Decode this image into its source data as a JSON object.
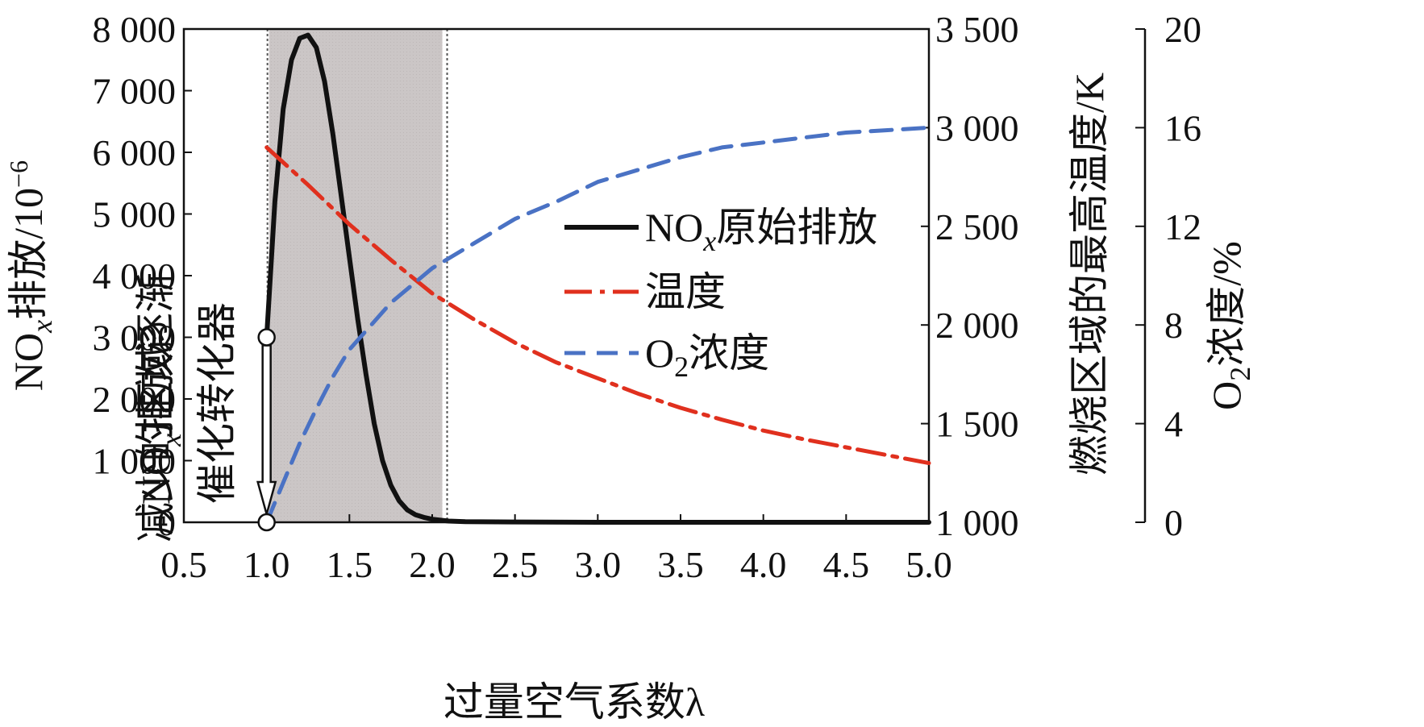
{
  "chart_data": {
    "type": "line",
    "xlabel": "过量空气系数λ",
    "x_axis": {
      "range": [
        0.5,
        5.0
      ],
      "ticks": [
        "0.5",
        "1.0",
        "1.5",
        "2.0",
        "2.5",
        "3.0",
        "3.5",
        "4.0",
        "4.5",
        "5.0"
      ]
    },
    "y_left": {
      "label_main": "NO",
      "label_sub": "x",
      "label_rest": "排放/10",
      "label_sup": "−6",
      "range": [
        0,
        8000
      ],
      "ticks": [
        "0",
        "1 000",
        "2 000",
        "3 000",
        "4 000",
        "5 000",
        "6 000",
        "7 000",
        "8 000"
      ]
    },
    "y_right1": {
      "label": "燃烧区域的最高温度/K",
      "range": [
        1000,
        3500
      ],
      "ticks": [
        "1 000",
        "1 500",
        "2 000",
        "2 500",
        "3 000",
        "3 500"
      ]
    },
    "y_right2": {
      "label_main": "O",
      "label_sub": "2",
      "label_rest": "浓度/%",
      "range": [
        0,
        20
      ],
      "ticks": [
        "0",
        "4",
        "8",
        "12",
        "16",
        "20"
      ]
    },
    "series": [
      {
        "name": "NOx原始排放",
        "legend_main": "NO",
        "legend_sub": "x",
        "legend_rest": "原始排放",
        "axis": "left",
        "color": "#111111",
        "style": "solid",
        "x": [
          1.0,
          1.05,
          1.1,
          1.15,
          1.2,
          1.25,
          1.3,
          1.35,
          1.4,
          1.45,
          1.5,
          1.55,
          1.6,
          1.65,
          1.7,
          1.75,
          1.8,
          1.85,
          1.9,
          1.95,
          2.0,
          2.1,
          2.2,
          2.5,
          3.0,
          4.0,
          5.0
        ],
        "values": [
          3000,
          5200,
          6700,
          7500,
          7850,
          7900,
          7700,
          7150,
          6300,
          5300,
          4300,
          3300,
          2400,
          1600,
          1000,
          600,
          350,
          200,
          120,
          80,
          50,
          20,
          10,
          5,
          0,
          0,
          0
        ]
      },
      {
        "name": "温度",
        "legend_main": "温度",
        "axis": "right1",
        "color": "#e0301e",
        "style": "dashdot",
        "x": [
          1.0,
          1.25,
          1.5,
          1.75,
          2.0,
          2.25,
          2.5,
          2.75,
          3.0,
          3.25,
          3.5,
          3.75,
          4.0,
          4.25,
          4.5,
          4.75,
          5.0
        ],
        "values": [
          2900,
          2710,
          2510,
          2330,
          2160,
          2030,
          1910,
          1810,
          1730,
          1650,
          1580,
          1520,
          1465,
          1420,
          1380,
          1340,
          1300
        ]
      },
      {
        "name": "O2浓度",
        "legend_main": "O",
        "legend_sub": "2",
        "legend_rest": "浓度",
        "axis": "right2",
        "color": "#4a72c4",
        "style": "dashed",
        "x": [
          1.0,
          1.1,
          1.2,
          1.3,
          1.4,
          1.5,
          1.75,
          2.0,
          2.25,
          2.5,
          2.75,
          3.0,
          3.25,
          3.5,
          3.75,
          4.0,
          4.25,
          4.5,
          4.75,
          5.0
        ],
        "values": [
          0,
          1.6,
          3.2,
          4.6,
          5.9,
          7.0,
          8.9,
          10.3,
          11.3,
          12.3,
          13.0,
          13.8,
          14.3,
          14.8,
          15.2,
          15.4,
          15.6,
          15.8,
          15.9,
          16.0
        ]
      }
    ],
    "shaded_region": {
      "x_range": [
        1.0,
        2.1
      ],
      "label_line1_main": "NO",
      "label_line1_sub": "x",
      "label_line1_rest": "排放逐渐",
      "label_line2": "减少的区域"
    },
    "annotation": {
      "text": "催化转化器",
      "arrow_x": 1.0,
      "arrow_from": 3000,
      "arrow_to": 0
    }
  }
}
